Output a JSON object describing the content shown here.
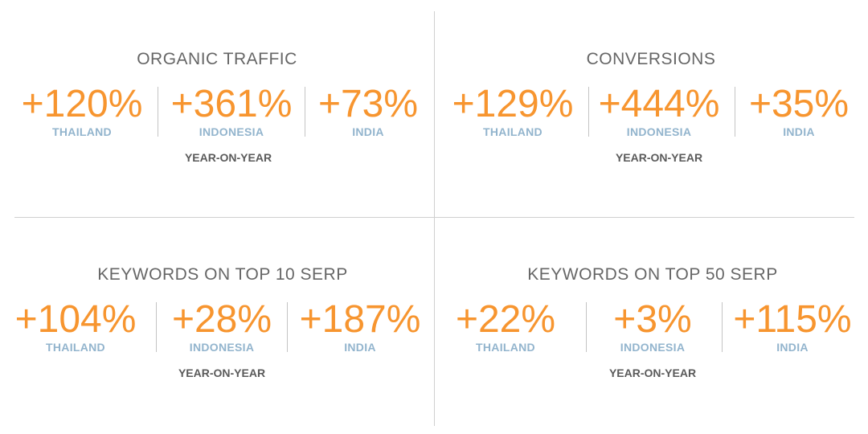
{
  "period_label": "YEAR-ON-YEAR",
  "colors": {
    "value": "#f7952f",
    "country": "#92b4cd",
    "title": "#666666",
    "period": "#5a5a5a",
    "divider": "#cfcfcf"
  },
  "panels": [
    {
      "title": "ORGANIC TRAFFIC",
      "stats": [
        {
          "value": "+120%",
          "country": "THAILAND"
        },
        {
          "value": "+361%",
          "country": "INDONESIA"
        },
        {
          "value": "+73%",
          "country": "INDIA"
        }
      ]
    },
    {
      "title": "CONVERSIONS",
      "stats": [
        {
          "value": "+129%",
          "country": "THAILAND"
        },
        {
          "value": "+444%",
          "country": "INDONESIA"
        },
        {
          "value": "+35%",
          "country": "INDIA"
        }
      ]
    },
    {
      "title": "KEYWORDS ON TOP 10 SERP",
      "stats": [
        {
          "value": "+104%",
          "country": "THAILAND"
        },
        {
          "value": "+28%",
          "country": "INDONESIA"
        },
        {
          "value": "+187%",
          "country": "INDIA"
        }
      ]
    },
    {
      "title": "KEYWORDS ON TOP 50 SERP",
      "stats": [
        {
          "value": "+22%",
          "country": "THAILAND"
        },
        {
          "value": "+3%",
          "country": "INDONESIA"
        },
        {
          "value": "+115%",
          "country": "INDIA"
        }
      ]
    }
  ]
}
